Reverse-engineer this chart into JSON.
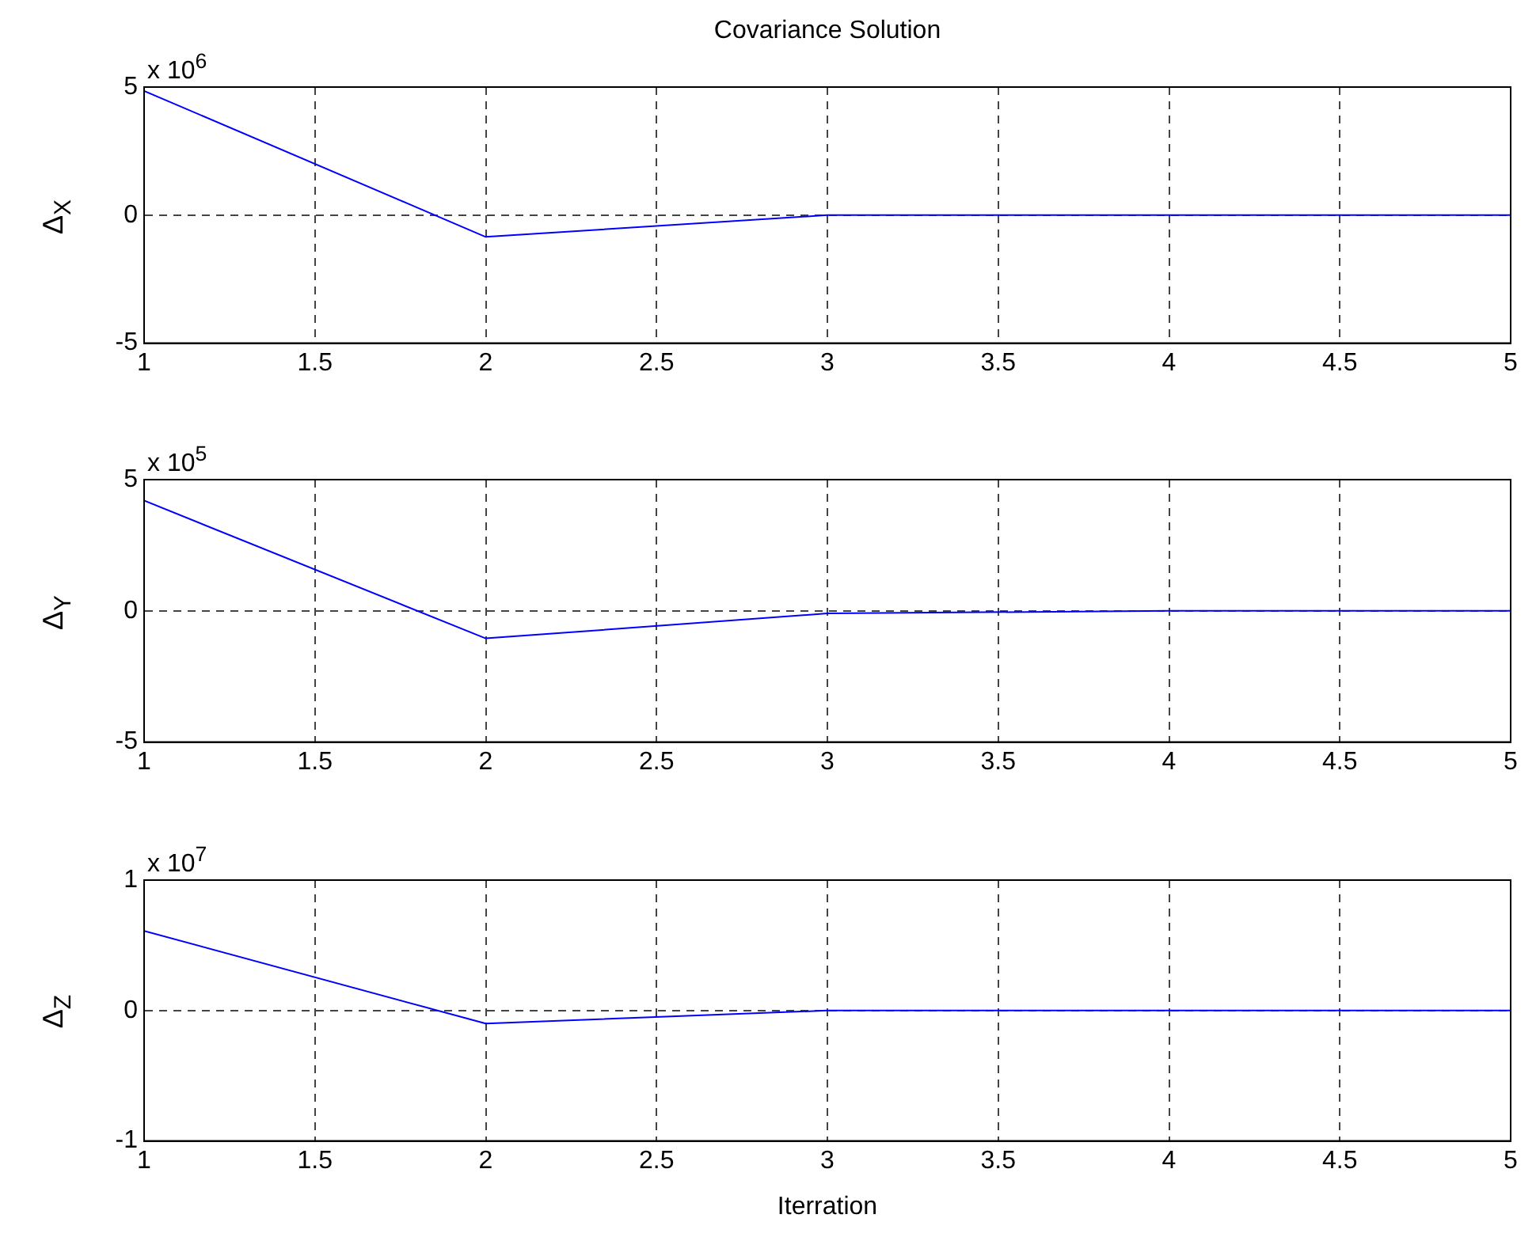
{
  "chart_data": [
    {
      "type": "line",
      "title": "Covariance Solution",
      "ylabel": "Δ$_{X}$",
      "annotations": [
        "x 10$^{6}$"
      ],
      "x": [
        1,
        2,
        3,
        4,
        5
      ],
      "values": [
        4.85,
        -0.85,
        0,
        0,
        0
      ],
      "color": "#0000ff",
      "xlim": [
        1,
        5
      ],
      "xticks": [
        1,
        1.5,
        2,
        2.5,
        3,
        3.5,
        4,
        4.5,
        5
      ],
      "ylim": [
        -5,
        5
      ],
      "yticks": [
        -5,
        0,
        5
      ],
      "grid": true,
      "marker": "none"
    },
    {
      "type": "line",
      "ylabel": "Δ$_{Y}$",
      "annotations": [
        "x 10$^{5}$"
      ],
      "x": [
        1,
        2,
        3,
        4,
        5
      ],
      "values": [
        4.2,
        -1.05,
        -0.1,
        0,
        0
      ],
      "color": "#0000ff",
      "xlim": [
        1,
        5
      ],
      "xticks": [
        1,
        1.5,
        2,
        2.5,
        3,
        3.5,
        4,
        4.5,
        5
      ],
      "ylim": [
        -5,
        5
      ],
      "yticks": [
        -5,
        0,
        5
      ],
      "grid": true,
      "marker": "none"
    },
    {
      "type": "line",
      "xlabel": "Iterration",
      "ylabel": "Δ$_{Z}$",
      "annotations": [
        "x 10$^{7}$"
      ],
      "x": [
        1,
        2,
        3,
        4,
        5
      ],
      "values": [
        0.61,
        -0.1,
        0,
        0,
        0
      ],
      "color": "#0000ff",
      "xlim": [
        1,
        5
      ],
      "xticks": [
        1,
        1.5,
        2,
        2.5,
        3,
        3.5,
        4,
        4.5,
        5
      ],
      "ylim": [
        -1,
        1
      ],
      "yticks": [
        -1,
        0,
        1
      ],
      "grid": true,
      "marker": "none"
    }
  ]
}
